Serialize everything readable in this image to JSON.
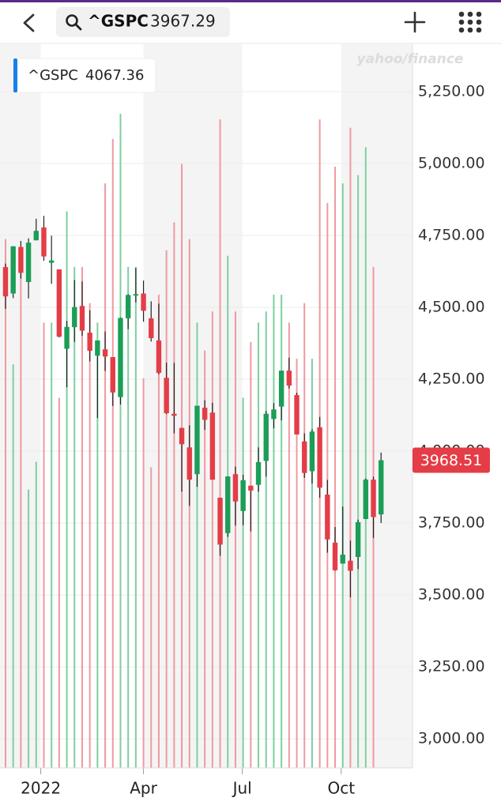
{
  "header": {
    "symbol": "^GSPC",
    "price": "3967.29"
  },
  "chart_data": {
    "type": "candlestick",
    "watermark": "yahoo/finance",
    "legend_label": {
      "symbol": "^GSPC",
      "value": "4067.36"
    },
    "price_marker": {
      "value": 3968.51,
      "label": "3968.51"
    },
    "up_color": "#1b9e57",
    "down_color": "#e43d47",
    "up_volume_color": "#7fcf9f",
    "down_volume_color": "#ef9a9f",
    "x": [
      0,
      1,
      2,
      3,
      4,
      5,
      6,
      7,
      8,
      9,
      10,
      11,
      12,
      13,
      14,
      15,
      16,
      17,
      18,
      19,
      20,
      21,
      22,
      23,
      24,
      25,
      26,
      27,
      28,
      29,
      30,
      31,
      32,
      33,
      34,
      35,
      36,
      37,
      38,
      39,
      40,
      41,
      42,
      43,
      44,
      45,
      46,
      47,
      48,
      49
    ],
    "open": [
      4640,
      4548,
      4710,
      4588,
      4733,
      4778,
      4655,
      4632,
      4356,
      4431,
      4505,
      4412,
      4332,
      4354,
      4327,
      4188,
      4462,
      4541,
      4548,
      4462,
      4385,
      4255,
      4130,
      4081,
      4013,
      3920,
      4151,
      4134,
      3838,
      3715,
      3920,
      3792,
      3880,
      3883,
      3966,
      4112,
      4155,
      4280,
      4195,
      4034,
      3930,
      4083,
      3849,
      3682,
      3609,
      3619,
      3632,
      3764,
      3901,
      3780
    ],
    "high": [
      4652,
      4713,
      4731,
      4740,
      4808,
      4818,
      4749,
      4632,
      4453,
      4595,
      4590,
      4490,
      4362,
      4416,
      4327,
      4465,
      4546,
      4637,
      4593,
      4521,
      4513,
      4308,
      4307,
      4081,
      4090,
      4158,
      4177,
      4168,
      3838,
      3913,
      3946,
      3918,
      3880,
      4013,
      4140,
      4167,
      4280,
      4325,
      4203,
      4062,
      4076,
      4119,
      3900,
      3736,
      3807,
      3689,
      3762,
      3905,
      3911,
      3995
    ],
    "low": [
      4495,
      4532,
      4600,
      4531,
      4733,
      4662,
      4582,
      4395,
      4222,
      4380,
      4401,
      4312,
      4115,
      4279,
      4157,
      4162,
      4424,
      4517,
      4450,
      4381,
      4267,
      4129,
      4062,
      3859,
      3810,
      3876,
      4074,
      3900,
      3636,
      3702,
      3741,
      3742,
      3721,
      3859,
      3911,
      4079,
      4107,
      4218,
      4058,
      3907,
      3887,
      3838,
      3647,
      3584,
      3609,
      3492,
      3590,
      3764,
      3698,
      3750
    ],
    "close": [
      4538,
      4712,
      4620,
      4725,
      4766,
      4677,
      4663,
      4398,
      4432,
      4501,
      4419,
      4349,
      4385,
      4329,
      4204,
      4463,
      4543,
      4546,
      4488,
      4393,
      4272,
      4132,
      4123,
      4024,
      3901,
      4158,
      4109,
      3901,
      3675,
      3912,
      3825,
      3899,
      3863,
      3962,
      4130,
      4145,
      4280,
      4228,
      4058,
      3924,
      4068,
      3873,
      3693,
      3586,
      3640,
      3584,
      3753,
      3901,
      3771,
      3968.51
    ],
    "volume": [
      19,
      14.5,
      18,
      10,
      11,
      16,
      16,
      13.3,
      20,
      18,
      18,
      16.7,
      16,
      21,
      22.6,
      23.5,
      18,
      18,
      14,
      10.8,
      17,
      18.6,
      19.6,
      21.7,
      19,
      16,
      15,
      16.4,
      23.3,
      18.4,
      16.4,
      13.3,
      15.3,
      16,
      16.4,
      17,
      17,
      16,
      14.7,
      16.7,
      14.7,
      23.3,
      20.3,
      21.6,
      21,
      23,
      21.3,
      22.3,
      18,
      null
    ],
    "volume_lim": [
      0,
      26
    ],
    "xlim": [
      -0.72,
      53.1
    ],
    "xticks": [
      {
        "value": 4.6,
        "label": "2022"
      },
      {
        "value": 18,
        "label": "Apr"
      },
      {
        "value": 30.9,
        "label": "Jul"
      },
      {
        "value": 43.8,
        "label": "Oct"
      }
    ],
    "ylim": [
      2898.6,
      5414.8
    ],
    "yticks": [
      {
        "value": 5250,
        "label": "5,250.00"
      },
      {
        "value": 5000,
        "label": "5,000.00"
      },
      {
        "value": 4750,
        "label": "4,750.00"
      },
      {
        "value": 4500,
        "label": "4,500.00"
      },
      {
        "value": 4250,
        "label": "4,250.00"
      },
      {
        "value": 4000,
        "label": "4,000.00"
      },
      {
        "value": 3750,
        "label": "3,750.00"
      },
      {
        "value": 3500,
        "label": "3,500.00"
      },
      {
        "value": 3250,
        "label": "3,250.00"
      },
      {
        "value": 3000,
        "label": "3,000.00"
      }
    ],
    "grid": true
  }
}
